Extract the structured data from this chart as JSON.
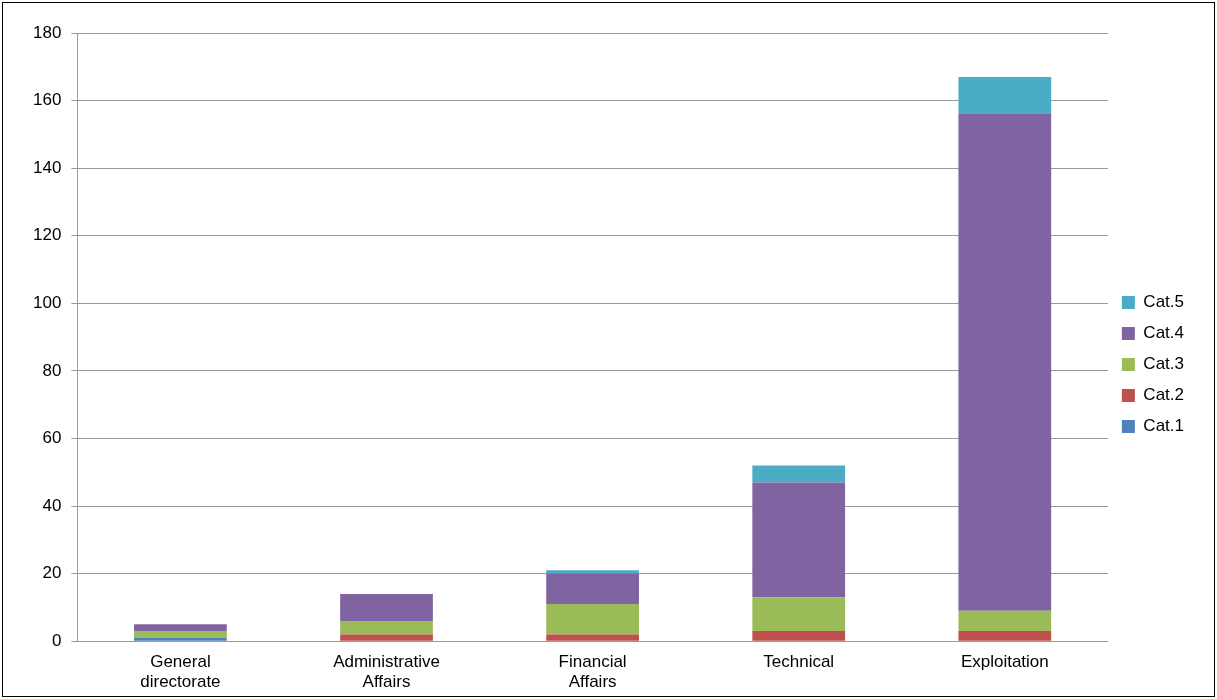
{
  "chart_data": {
    "type": "bar",
    "stacked": true,
    "categories": [
      "General directorate",
      "Administrative Affairs",
      "Financial Affairs",
      "Technical",
      "Exploitation"
    ],
    "series": [
      {
        "name": "Cat.1",
        "color": "#4f81bd",
        "values": [
          1,
          0,
          0,
          0,
          0
        ]
      },
      {
        "name": "Cat.2",
        "color": "#c0504d",
        "values": [
          0,
          2,
          2,
          3,
          3
        ]
      },
      {
        "name": "Cat.3",
        "color": "#9bbb59",
        "values": [
          2,
          4,
          9,
          10,
          6
        ]
      },
      {
        "name": "Cat.4",
        "color": "#8064a2",
        "values": [
          2,
          8,
          9,
          34,
          147
        ]
      },
      {
        "name": "Cat.5",
        "color": "#4bacc6",
        "values": [
          0,
          0,
          1,
          5,
          11
        ]
      }
    ],
    "ylim": [
      0,
      180
    ],
    "yticks": [
      0,
      20,
      40,
      60,
      80,
      100,
      120,
      140,
      160,
      180
    ],
    "grid": "y",
    "legend": "right"
  }
}
